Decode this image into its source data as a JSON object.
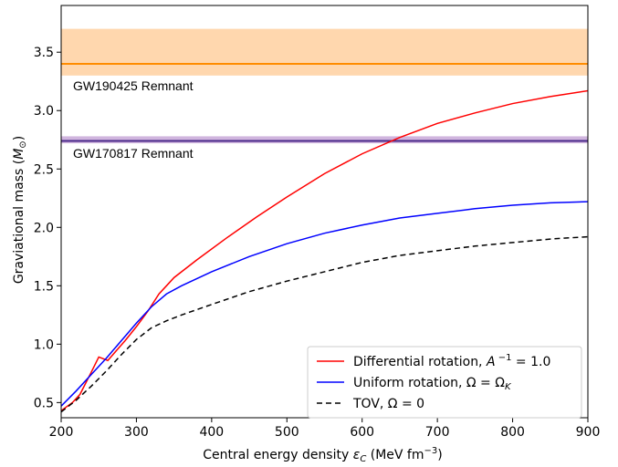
{
  "chart_data": {
    "type": "line",
    "xlabel": "Central energy density",
    "xlabel_symbol": "ε",
    "xlabel_sub": "C",
    "xlabel_unit_prefix": "(MeV fm",
    "xlabel_unit_exp": "−3",
    "xlabel_unit_suffix": ")",
    "ylabel": "Graviational mass (",
    "ylabel_symbol": "M",
    "ylabel_sub": "⊙",
    "ylabel_suffix": ")",
    "xlim": [
      200,
      900
    ],
    "ylim": [
      0.37,
      3.9
    ],
    "x_ticks": [
      200,
      300,
      400,
      500,
      600,
      700,
      800,
      900
    ],
    "y_ticks": [
      0.5,
      1.0,
      1.5,
      2.0,
      2.5,
      3.0,
      3.5
    ],
    "x_tick_labels": [
      "200",
      "300",
      "400",
      "500",
      "600",
      "700",
      "800",
      "900"
    ],
    "y_tick_labels": [
      "0.5",
      "1.0",
      "1.5",
      "2.0",
      "2.5",
      "3.0",
      "3.5"
    ],
    "grid": false,
    "legend_position": "bottom-right",
    "bands": [
      {
        "name": "GW190425 Remnant",
        "center": 3.4,
        "lower": 3.3,
        "upper": 3.7,
        "line_color": "#ff8c00",
        "fill_color": "#ffd0a0"
      },
      {
        "name": "GW170817 Remnant",
        "center": 2.74,
        "lower": 2.72,
        "upper": 2.78,
        "line_color": "#4b2a8a",
        "fill_color": "#c8a8d8"
      }
    ],
    "series": [
      {
        "name_text": "Differential rotation, ",
        "name_symbol": "A",
        "name_sup": "−1",
        "name_suffix": " = 1.0",
        "color": "#ff0000",
        "dash": "",
        "x": [
          200,
          215,
          225,
          240,
          250,
          262,
          270,
          285,
          300,
          315,
          330,
          340,
          350,
          380,
          420,
          460,
          500,
          550,
          600,
          650,
          700,
          750,
          800,
          850,
          900
        ],
        "y": [
          0.43,
          0.5,
          0.57,
          0.76,
          0.89,
          0.86,
          0.92,
          1.03,
          1.15,
          1.28,
          1.43,
          1.5,
          1.57,
          1.72,
          1.91,
          2.09,
          2.26,
          2.46,
          2.63,
          2.77,
          2.89,
          2.98,
          3.06,
          3.12,
          3.17
        ]
      },
      {
        "name_text": "Uniform rotation, Ω = Ω",
        "name_symbol": "",
        "name_sub": "K",
        "color": "#0000ff",
        "dash": "",
        "x": [
          200,
          220,
          240,
          260,
          280,
          300,
          320,
          340,
          360,
          400,
          450,
          500,
          550,
          600,
          650,
          700,
          750,
          800,
          850,
          900
        ],
        "y": [
          0.47,
          0.6,
          0.74,
          0.88,
          1.03,
          1.18,
          1.32,
          1.43,
          1.5,
          1.62,
          1.75,
          1.86,
          1.95,
          2.02,
          2.08,
          2.12,
          2.16,
          2.19,
          2.21,
          2.22
        ]
      },
      {
        "name_text": "TOV, Ω = 0",
        "name_symbol": "",
        "color": "#000000",
        "dash": "6,4",
        "x": [
          200,
          220,
          240,
          260,
          280,
          300,
          320,
          340,
          360,
          400,
          450,
          500,
          550,
          600,
          650,
          700,
          750,
          800,
          850,
          900
        ],
        "y": [
          0.42,
          0.52,
          0.64,
          0.77,
          0.91,
          1.04,
          1.14,
          1.2,
          1.25,
          1.34,
          1.45,
          1.54,
          1.62,
          1.7,
          1.76,
          1.8,
          1.84,
          1.87,
          1.9,
          1.92
        ]
      }
    ]
  }
}
